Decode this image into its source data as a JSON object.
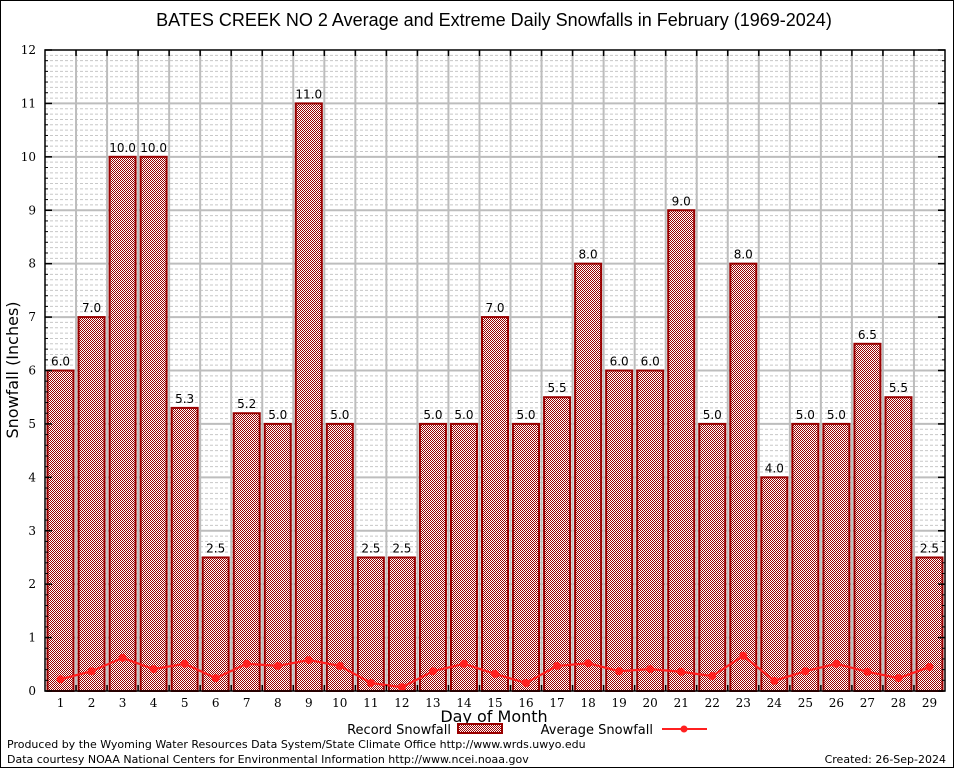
{
  "chart_data": {
    "type": "bar",
    "title": "BATES CREEK NO 2 Average and Extreme Daily Snowfalls in February (1969-2024)",
    "xlabel": "Day of Month",
    "ylabel": "Snowfall (Inches)",
    "ylim": [
      0,
      12
    ],
    "yticks": [
      "0",
      "1",
      "2",
      "3",
      "4",
      "5",
      "6",
      "7",
      "8",
      "9",
      "10",
      "11",
      "12"
    ],
    "categories": [
      "1",
      "2",
      "3",
      "4",
      "5",
      "6",
      "7",
      "8",
      "9",
      "10",
      "11",
      "12",
      "13",
      "14",
      "15",
      "16",
      "17",
      "18",
      "19",
      "20",
      "21",
      "22",
      "23",
      "24",
      "25",
      "26",
      "27",
      "28",
      "29"
    ],
    "grid": true,
    "legend_position": "bottom",
    "series": [
      {
        "name": "Record Snowfall",
        "type": "bar",
        "color": "#990000",
        "values": [
          6.0,
          7.0,
          10.0,
          10.0,
          5.3,
          2.5,
          5.2,
          5.0,
          11.0,
          5.0,
          2.5,
          2.5,
          5.0,
          5.0,
          7.0,
          5.0,
          5.5,
          8.0,
          6.0,
          6.0,
          9.0,
          5.0,
          8.0,
          4.0,
          5.0,
          5.0,
          6.5,
          5.5,
          2.5
        ],
        "labels": [
          "6.0",
          "7.0",
          "10.0",
          "10.0",
          "5.3",
          "2.5",
          "5.2",
          "5.0",
          "11.0",
          "5.0",
          "2.5",
          "2.5",
          "5.0",
          "5.0",
          "7.0",
          "5.0",
          "5.5",
          "8.0",
          "6.0",
          "6.0",
          "9.0",
          "5.0",
          "8.0",
          "4.0",
          "5.0",
          "5.0",
          "6.5",
          "5.5",
          "2.5"
        ]
      },
      {
        "name": "Average Snowfall",
        "type": "line",
        "color": "#ff2020",
        "values": [
          0.22,
          0.37,
          0.62,
          0.41,
          0.51,
          0.24,
          0.51,
          0.47,
          0.58,
          0.47,
          0.15,
          0.07,
          0.37,
          0.51,
          0.32,
          0.15,
          0.47,
          0.52,
          0.37,
          0.41,
          0.36,
          0.28,
          0.66,
          0.19,
          0.37,
          0.51,
          0.36,
          0.24,
          0.45
        ]
      }
    ]
  },
  "footer": {
    "produced_by": "Produced by the Wyoming Water Resources Data System/State Climate Office http://www.wrds.uwyo.edu",
    "data_courtesy": "Data courtesy NOAA National Centers for Environmental Information http://www.ncei.noaa.gov",
    "created": "Created: 26-Sep-2024"
  }
}
